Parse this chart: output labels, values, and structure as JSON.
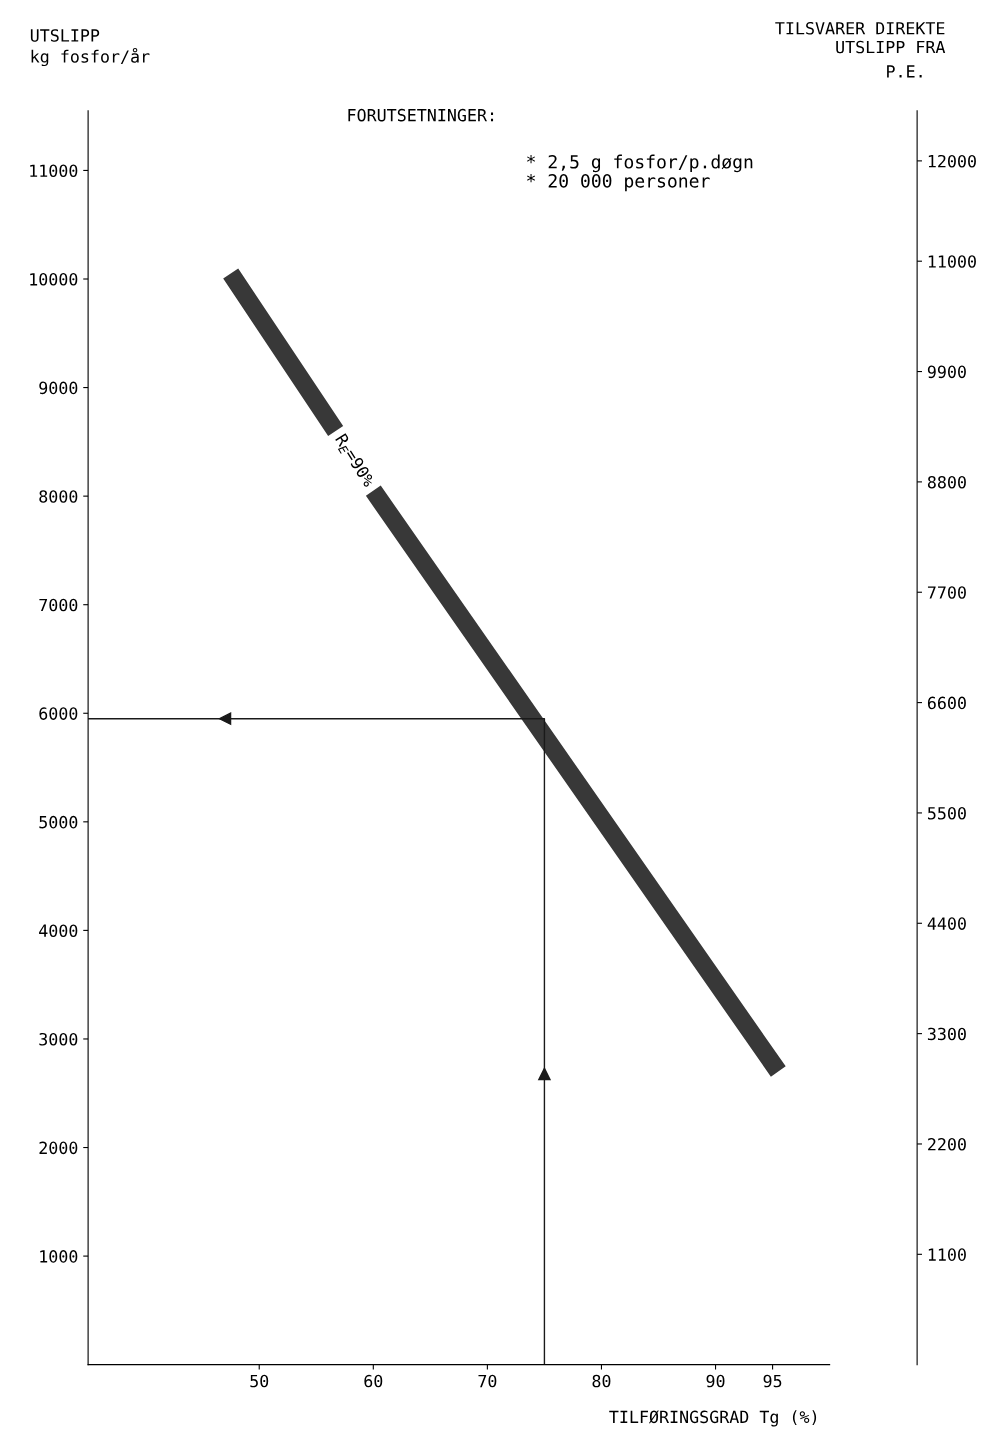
{
  "chart_data": {
    "type": "line",
    "title": "FORUTSETNINGER:",
    "xlabel": "TILFØRINGSGRAD Tg (%)",
    "ylabel": "UTSLIPP\nkg fosfor/år",
    "y2label": "P.E.",
    "annotations": [
      "* 2,5 g fosfor/p.døgn\n* 20 000 personer",
      "TILSVARER DIREKTE\nUTSLIPP FRA"
    ],
    "series": [
      {
        "name": "R$_{E}$=90%",
        "color": "#383838",
        "x": [
          47.5,
          56.7,
          58.3,
          60.0,
          95.5
        ],
        "values": [
          10050,
          8600,
          null,
          8050,
          2700
        ]
      },
      {
        "color": "#1a1a1a",
        "x": [
          75,
          75,
          35
        ],
        "values": [
          0,
          5950,
          5950
        ]
      }
    ],
    "xlim": [
      35,
      100
    ],
    "xticks": [
      50,
      60,
      70,
      80,
      90,
      95
    ],
    "ylim": [
      0,
      11550
    ],
    "yticks": [
      1000,
      2000,
      3000,
      4000,
      5000,
      6000,
      7000,
      8000,
      9000,
      10000,
      11000
    ],
    "y2lim": [
      0,
      12500
    ],
    "y2ticks": [
      1100,
      2200,
      3300,
      4400,
      5500,
      6600,
      7700,
      8800,
      9900,
      11000,
      12000
    ],
    "grid": false,
    "legend": false,
    "marker": "none",
    "line_style": "solid"
  }
}
